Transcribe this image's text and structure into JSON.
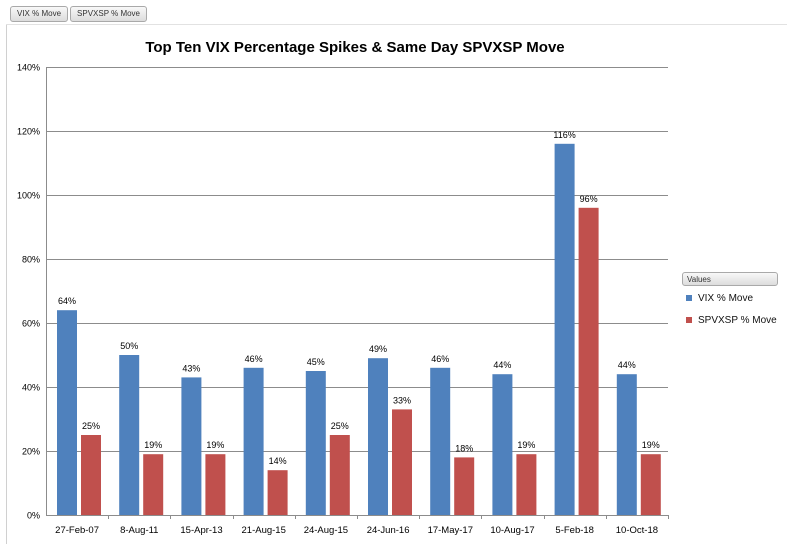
{
  "field_buttons": [
    "VIX % Move",
    "SPVXSP % Move"
  ],
  "legend": {
    "header": "Values",
    "items": [
      {
        "label": "VIX % Move",
        "color": "#4f81bd"
      },
      {
        "label": "SPVXSP % Move",
        "color": "#c0504d"
      }
    ]
  },
  "chart_data": {
    "type": "bar",
    "title": "Top Ten VIX Percentage Spikes & Same Day SPVXSP Move",
    "xlabel": "",
    "ylabel": "",
    "ylim": [
      0,
      140
    ],
    "yticks": [
      0,
      20,
      40,
      60,
      80,
      100,
      120,
      140
    ],
    "ytick_labels": [
      "0%",
      "20%",
      "40%",
      "60%",
      "80%",
      "100%",
      "120%",
      "140%"
    ],
    "grid": true,
    "legend_position": "right",
    "categories": [
      "27-Feb-07",
      "8-Aug-11",
      "15-Apr-13",
      "21-Aug-15",
      "24-Aug-15",
      "24-Jun-16",
      "17-May-17",
      "10-Aug-17",
      "5-Feb-18",
      "10-Oct-18"
    ],
    "series": [
      {
        "name": "VIX % Move",
        "color": "#4f81bd",
        "values": [
          64,
          50,
          43,
          46,
          45,
          49,
          46,
          44,
          116,
          44
        ],
        "labels": [
          "64%",
          "50%",
          "43%",
          "46%",
          "45%",
          "49%",
          "46%",
          "44%",
          "116%",
          "44%"
        ]
      },
      {
        "name": "SPVXSP % Move",
        "color": "#c0504d",
        "values": [
          25,
          19,
          19,
          14,
          25,
          33,
          18,
          19,
          96,
          19
        ],
        "labels": [
          "25%",
          "19%",
          "19%",
          "14%",
          "25%",
          "33%",
          "18%",
          "19%",
          "96%",
          "19%"
        ]
      }
    ]
  }
}
